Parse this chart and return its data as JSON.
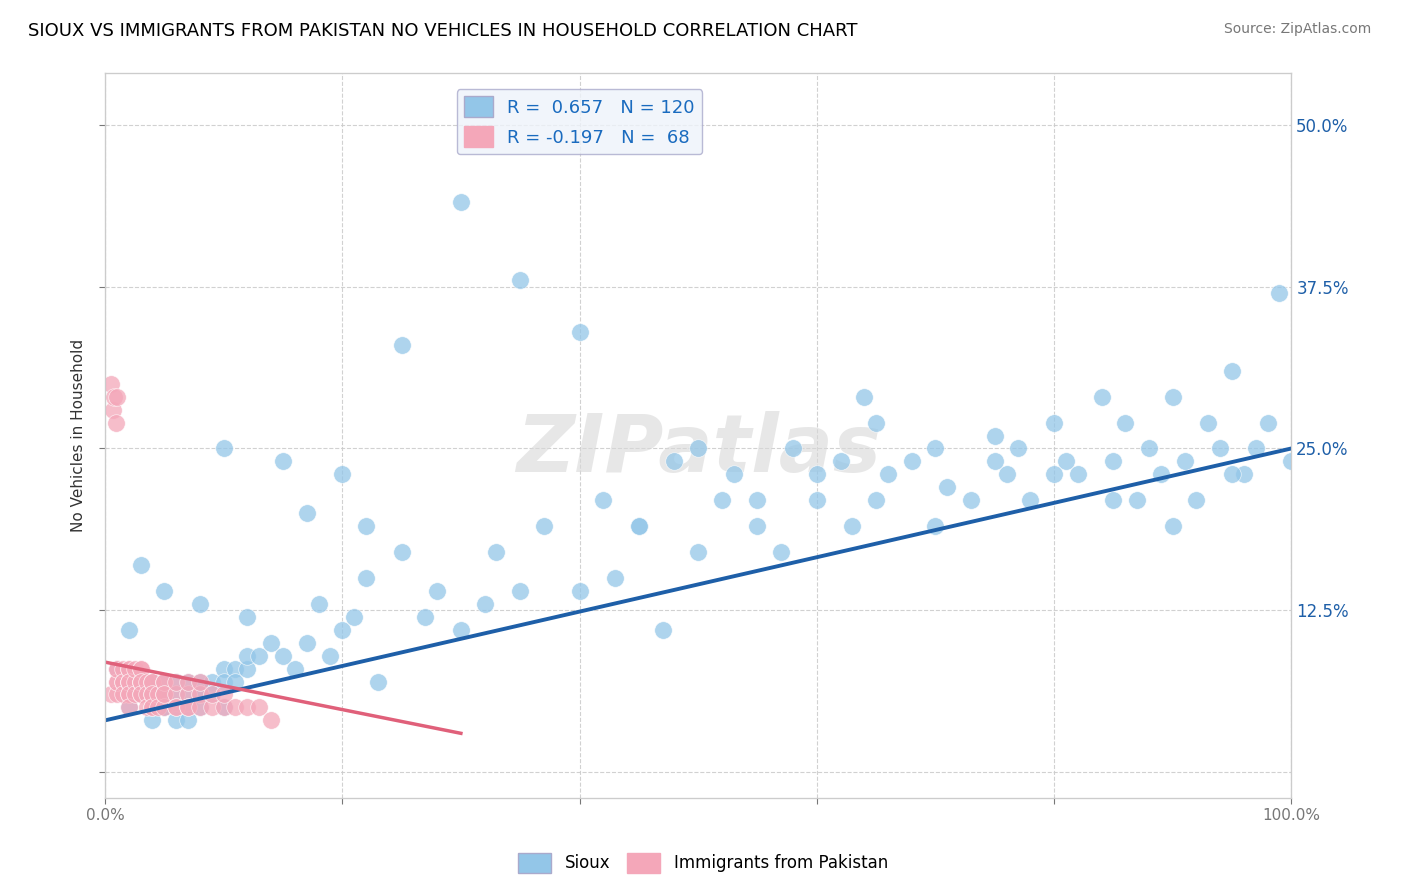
{
  "title": "SIOUX VS IMMIGRANTS FROM PAKISTAN NO VEHICLES IN HOUSEHOLD CORRELATION CHART",
  "source": "Source: ZipAtlas.com",
  "ylabel": "No Vehicles in Household",
  "xlim": [
    0.0,
    1.0
  ],
  "ylim": [
    -0.02,
    0.54
  ],
  "xticks": [
    0.0,
    0.2,
    0.4,
    0.6,
    0.8,
    1.0
  ],
  "yticks": [
    0.0,
    0.125,
    0.25,
    0.375,
    0.5
  ],
  "sioux_R": 0.657,
  "sioux_N": 120,
  "pakistan_R": -0.197,
  "pakistan_N": 68,
  "sioux_color": "#93c6e8",
  "pakistan_color": "#f4a7b9",
  "sioux_line_color": "#1e5fa8",
  "pakistan_line_color": "#e0607a",
  "watermark": "ZIPatlas",
  "title_fontsize": 13,
  "axis_label_fontsize": 11,
  "tick_fontsize": 11,
  "sioux_x": [
    0.02,
    0.03,
    0.04,
    0.04,
    0.05,
    0.05,
    0.05,
    0.05,
    0.06,
    0.06,
    0.06,
    0.06,
    0.07,
    0.07,
    0.07,
    0.07,
    0.08,
    0.08,
    0.08,
    0.08,
    0.09,
    0.09,
    0.1,
    0.1,
    0.1,
    0.11,
    0.11,
    0.12,
    0.12,
    0.13,
    0.14,
    0.15,
    0.16,
    0.17,
    0.18,
    0.19,
    0.2,
    0.21,
    0.22,
    0.23,
    0.25,
    0.27,
    0.28,
    0.3,
    0.32,
    0.33,
    0.35,
    0.37,
    0.4,
    0.42,
    0.43,
    0.45,
    0.47,
    0.48,
    0.5,
    0.52,
    0.53,
    0.55,
    0.57,
    0.58,
    0.6,
    0.62,
    0.63,
    0.64,
    0.65,
    0.66,
    0.68,
    0.7,
    0.71,
    0.73,
    0.75,
    0.76,
    0.77,
    0.78,
    0.8,
    0.81,
    0.82,
    0.84,
    0.85,
    0.86,
    0.87,
    0.88,
    0.89,
    0.9,
    0.91,
    0.92,
    0.93,
    0.94,
    0.95,
    0.96,
    0.97,
    0.98,
    0.99,
    1.0,
    0.95,
    0.9,
    0.85,
    0.8,
    0.75,
    0.7,
    0.65,
    0.6,
    0.55,
    0.5,
    0.45,
    0.4,
    0.35,
    0.3,
    0.25,
    0.2,
    0.15,
    0.1,
    0.05,
    0.03,
    0.02,
    0.01,
    0.08,
    0.12,
    0.17,
    0.22
  ],
  "sioux_y": [
    0.05,
    0.06,
    0.04,
    0.07,
    0.05,
    0.06,
    0.07,
    0.05,
    0.05,
    0.06,
    0.07,
    0.04,
    0.05,
    0.04,
    0.06,
    0.07,
    0.06,
    0.07,
    0.05,
    0.06,
    0.07,
    0.06,
    0.08,
    0.07,
    0.05,
    0.08,
    0.07,
    0.08,
    0.09,
    0.09,
    0.1,
    0.09,
    0.08,
    0.1,
    0.13,
    0.09,
    0.11,
    0.12,
    0.19,
    0.07,
    0.17,
    0.12,
    0.14,
    0.11,
    0.13,
    0.17,
    0.14,
    0.19,
    0.14,
    0.21,
    0.15,
    0.19,
    0.11,
    0.24,
    0.17,
    0.21,
    0.23,
    0.19,
    0.17,
    0.25,
    0.21,
    0.24,
    0.19,
    0.29,
    0.21,
    0.23,
    0.24,
    0.19,
    0.22,
    0.21,
    0.26,
    0.23,
    0.25,
    0.21,
    0.27,
    0.24,
    0.23,
    0.29,
    0.24,
    0.27,
    0.21,
    0.25,
    0.23,
    0.29,
    0.24,
    0.21,
    0.27,
    0.25,
    0.31,
    0.23,
    0.25,
    0.27,
    0.37,
    0.24,
    0.23,
    0.19,
    0.21,
    0.23,
    0.24,
    0.25,
    0.27,
    0.23,
    0.21,
    0.25,
    0.19,
    0.34,
    0.38,
    0.44,
    0.33,
    0.23,
    0.24,
    0.25,
    0.14,
    0.16,
    0.11,
    0.08,
    0.13,
    0.12,
    0.2,
    0.15
  ],
  "pakistan_x": [
    0.005,
    0.005,
    0.007,
    0.008,
    0.009,
    0.01,
    0.01,
    0.01,
    0.01,
    0.01,
    0.01,
    0.015,
    0.015,
    0.015,
    0.015,
    0.02,
    0.02,
    0.02,
    0.02,
    0.02,
    0.02,
    0.02,
    0.02,
    0.025,
    0.025,
    0.025,
    0.03,
    0.03,
    0.03,
    0.03,
    0.03,
    0.03,
    0.03,
    0.035,
    0.035,
    0.035,
    0.04,
    0.04,
    0.04,
    0.04,
    0.04,
    0.04,
    0.045,
    0.045,
    0.05,
    0.05,
    0.05,
    0.05,
    0.05,
    0.06,
    0.06,
    0.06,
    0.06,
    0.07,
    0.07,
    0.07,
    0.07,
    0.08,
    0.08,
    0.08,
    0.09,
    0.09,
    0.1,
    0.1,
    0.11,
    0.12,
    0.13,
    0.14
  ],
  "pakistan_y": [
    0.06,
    0.3,
    0.28,
    0.29,
    0.27,
    0.07,
    0.08,
    0.06,
    0.29,
    0.07,
    0.08,
    0.07,
    0.08,
    0.07,
    0.06,
    0.07,
    0.08,
    0.06,
    0.07,
    0.08,
    0.07,
    0.06,
    0.05,
    0.07,
    0.08,
    0.06,
    0.07,
    0.08,
    0.06,
    0.07,
    0.08,
    0.07,
    0.06,
    0.07,
    0.06,
    0.05,
    0.07,
    0.06,
    0.05,
    0.07,
    0.06,
    0.05,
    0.06,
    0.05,
    0.07,
    0.06,
    0.05,
    0.07,
    0.06,
    0.06,
    0.05,
    0.07,
    0.05,
    0.06,
    0.05,
    0.07,
    0.05,
    0.06,
    0.05,
    0.07,
    0.05,
    0.06,
    0.05,
    0.06,
    0.05,
    0.05,
    0.05,
    0.04
  ],
  "sioux_line_x0": 0.0,
  "sioux_line_y0": 0.04,
  "sioux_line_x1": 1.0,
  "sioux_line_y1": 0.25,
  "pak_line_x0": 0.0,
  "pak_line_y0": 0.085,
  "pak_line_x1": 0.3,
  "pak_line_y1": 0.03
}
